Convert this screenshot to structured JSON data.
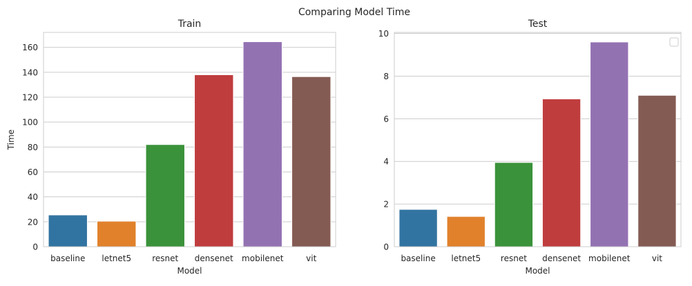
{
  "suptitle": "Comparing Model Time",
  "colors": [
    "#3274a1",
    "#e1812c",
    "#3a923a",
    "#c03d3e",
    "#9372b2",
    "#845b53"
  ],
  "chart_data": [
    {
      "type": "bar",
      "title": "Train",
      "xlabel": "Model",
      "ylabel": "Time",
      "categories": [
        "baseline",
        "letnet5",
        "resnet",
        "densenet",
        "mobilenet",
        "vit"
      ],
      "values": [
        25.5,
        20.5,
        82.0,
        138.0,
        164.5,
        136.5
      ],
      "ylim": [
        0,
        172
      ],
      "yticks": [
        0,
        20,
        40,
        60,
        80,
        100,
        120,
        140,
        160
      ],
      "ytick_labels": [
        "0",
        "20",
        "40",
        "60",
        "80",
        "100",
        "120",
        "140",
        "160"
      ],
      "grid": "horizontal",
      "legend": "none"
    },
    {
      "type": "bar",
      "title": "Test",
      "xlabel": "Model",
      "ylabel": "",
      "categories": [
        "baseline",
        "letnet5",
        "resnet",
        "densenet",
        "mobilenet",
        "vit"
      ],
      "values": [
        1.75,
        1.42,
        3.95,
        6.93,
        9.6,
        7.1
      ],
      "ylim": [
        0,
        10.05
      ],
      "yticks": [
        0,
        2,
        4,
        6,
        8,
        10
      ],
      "ytick_labels": [
        "0",
        "2",
        "4",
        "6",
        "8",
        "10"
      ],
      "grid": "horizontal",
      "legend": "empty box, top-right"
    }
  ]
}
